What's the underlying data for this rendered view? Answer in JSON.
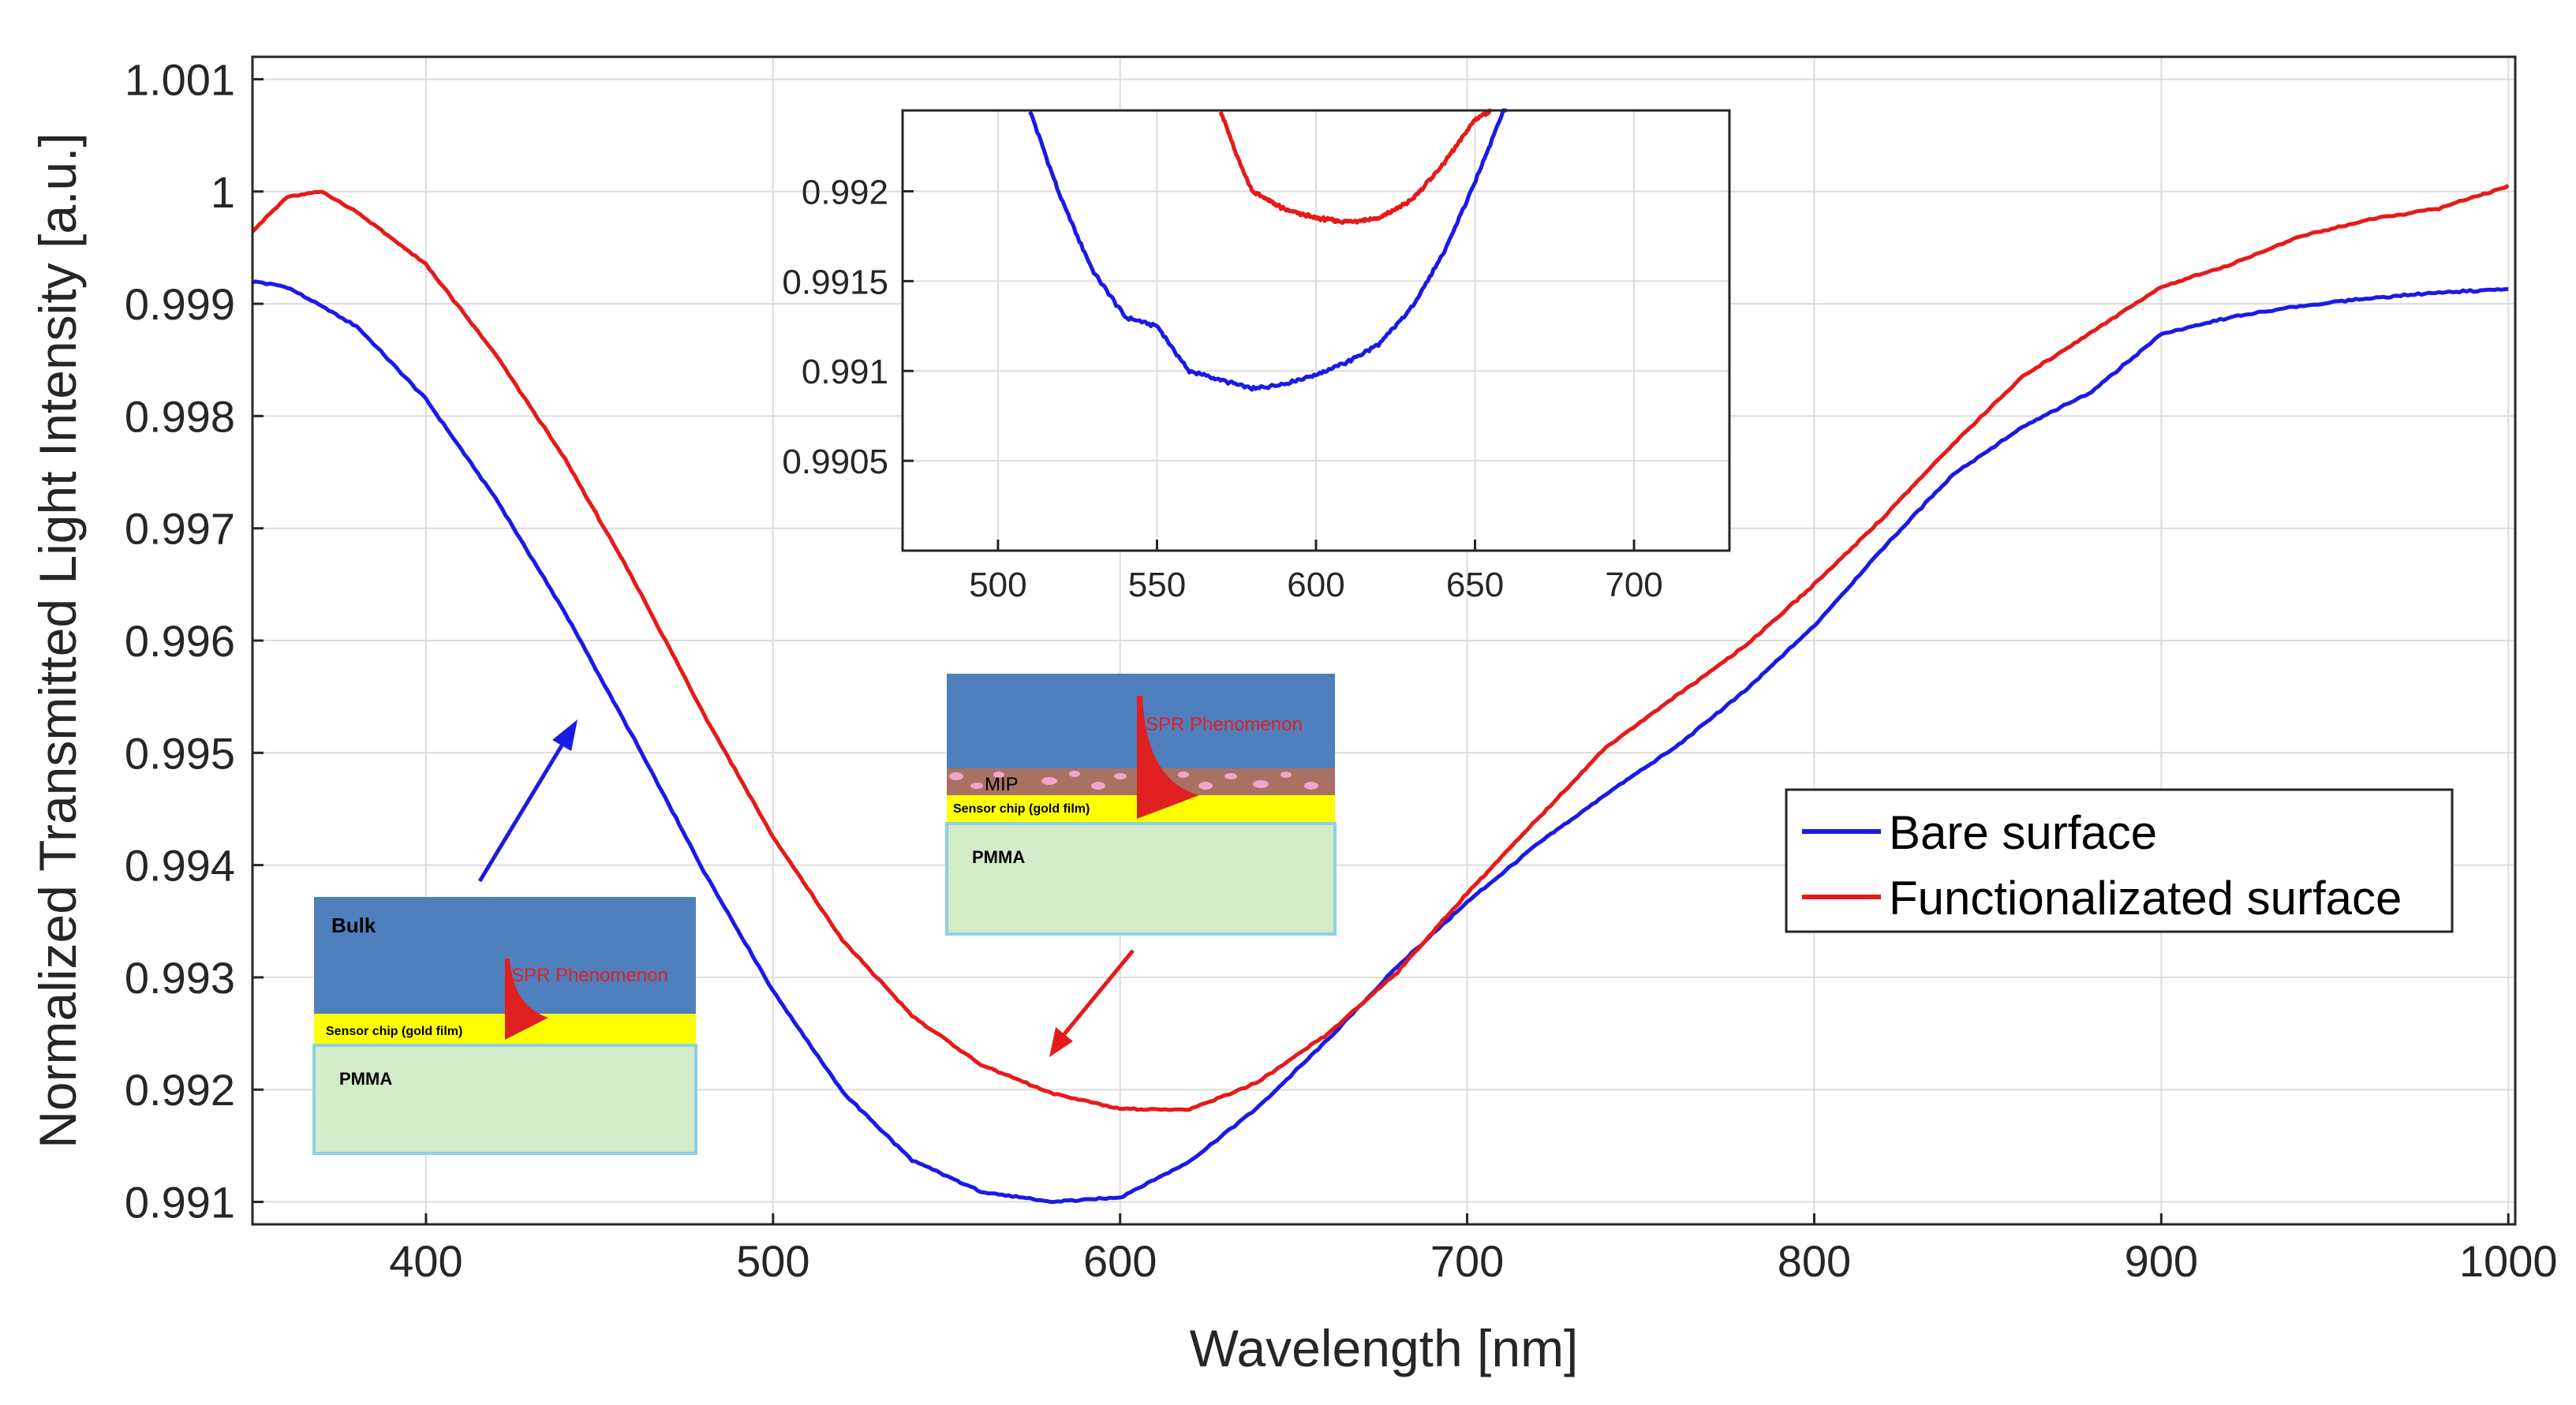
{
  "chart_data": [
    {
      "id": "main",
      "type": "line",
      "title": "",
      "xlabel": "Wavelength [nm]",
      "ylabel": "Normalized Transmitted Light Intensity [a.u.]",
      "xlim": [
        350,
        1002
      ],
      "ylim": [
        0.9908,
        1.0012
      ],
      "xticks": [
        400,
        500,
        600,
        700,
        800,
        900,
        1000
      ],
      "yticks": [
        0.991,
        0.992,
        0.993,
        0.994,
        0.995,
        0.996,
        0.997,
        0.998,
        0.999,
        1,
        1.001
      ],
      "ytick_labels": [
        "0.991",
        "0.992",
        "0.993",
        "0.994",
        "0.995",
        "0.996",
        "0.997",
        "0.998",
        "0.999",
        "1",
        "1.001"
      ],
      "grid": true,
      "legend_position": "center-right",
      "series": [
        {
          "name": "Bare surface",
          "color": "#1a1ae6",
          "x": [
            350,
            360,
            380,
            400,
            420,
            440,
            460,
            480,
            500,
            520,
            540,
            560,
            580,
            600,
            620,
            640,
            660,
            680,
            700,
            720,
            740,
            760,
            780,
            800,
            820,
            840,
            860,
            880,
            900,
            920,
            940,
            960,
            980,
            1000
          ],
          "y": [
            0.9992,
            0.99915,
            0.9988,
            0.99815,
            0.99727,
            0.99625,
            0.99512,
            0.99395,
            0.99288,
            0.99198,
            0.99137,
            0.99109,
            0.991,
            0.99104,
            0.99136,
            0.99185,
            0.99245,
            0.9931,
            0.99367,
            0.99418,
            0.99463,
            0.99505,
            0.99555,
            0.99613,
            0.99683,
            0.99748,
            0.9979,
            0.99822,
            0.99873,
            0.99888,
            0.99898,
            0.99905,
            0.9991,
            0.99913
          ]
        },
        {
          "name": "Functionalizated surface",
          "color": "#e61a1a",
          "x": [
            350,
            360,
            370,
            380,
            400,
            420,
            440,
            460,
            480,
            500,
            520,
            540,
            560,
            580,
            600,
            620,
            640,
            660,
            680,
            700,
            720,
            740,
            760,
            780,
            800,
            820,
            840,
            860,
            880,
            900,
            920,
            940,
            960,
            980,
            1000
          ],
          "y": [
            0.99965,
            0.99995,
            1.0,
            0.99982,
            0.99935,
            0.99855,
            0.99762,
            0.99653,
            0.99535,
            0.99425,
            0.99333,
            0.99266,
            0.99222,
            0.99197,
            0.99183,
            0.99182,
            0.99207,
            0.9925,
            0.99305,
            0.99375,
            0.9944,
            0.99505,
            0.9955,
            0.99595,
            0.9965,
            0.9971,
            0.99775,
            0.99835,
            0.99875,
            0.99915,
            0.99935,
            0.9996,
            0.99975,
            0.99985,
            1.00005
          ]
        }
      ]
    },
    {
      "id": "inset",
      "type": "line",
      "title": "",
      "xlim": [
        470,
        730
      ],
      "ylim": [
        0.99,
        0.99245
      ],
      "xticks": [
        500,
        550,
        600,
        650,
        700
      ],
      "yticks": [
        0.9905,
        0.991,
        0.9915,
        0.992
      ],
      "ytick_labels": [
        "0.9905",
        "0.991",
        "0.9915",
        "0.992"
      ],
      "grid": true,
      "series": [
        {
          "name": "Bare surface",
          "color": "#1a1ae6",
          "x": [
            510,
            520,
            530,
            540,
            550,
            560,
            570,
            580,
            590,
            600,
            610,
            620,
            630,
            640,
            650,
            660
          ],
          "y": [
            0.99245,
            0.99195,
            0.99155,
            0.9913,
            0.99125,
            0.991,
            0.99095,
            0.9909,
            0.99093,
            0.99098,
            0.99105,
            0.99115,
            0.99135,
            0.99165,
            0.99205,
            0.9925
          ]
        },
        {
          "name": "Functionalizated surface",
          "color": "#e61a1a",
          "x": [
            570,
            575,
            580,
            590,
            600,
            610,
            620,
            630,
            640,
            650,
            655
          ],
          "y": [
            0.99245,
            0.9922,
            0.992,
            0.9919,
            0.99185,
            0.99183,
            0.99185,
            0.99195,
            0.99215,
            0.9924,
            0.99245
          ]
        }
      ]
    }
  ],
  "legend": {
    "items": [
      {
        "label": "Bare surface",
        "color": "#1a1ae6"
      },
      {
        "label": "Functionalizated surface",
        "color": "#e61a1a"
      }
    ]
  },
  "diagram_bare": {
    "bulk_label": "Bulk",
    "spr_label": "SPR Phenomenon",
    "chip_label": "Sensor chip (gold film)",
    "pmma_label": "PMMA",
    "colors": {
      "bulk": "#4f7fbd",
      "gold": "#ffff00",
      "pmma": "#d2ecc9",
      "border": "#8dd0e6",
      "spr": "#e02020",
      "arrow": "#1a1ae6"
    }
  },
  "diagram_functionalized": {
    "spr_label": "SPR Phenomenon",
    "mip_label": "MIP",
    "chip_label": "Sensor chip (gold film)",
    "pmma_label": "PMMA",
    "colors": {
      "bulk": "#4f7fbd",
      "mip": "#a87162",
      "mip_spots": "#f2a5c8",
      "gold": "#ffff00",
      "pmma": "#d2ecc9",
      "border": "#8dd0e6",
      "spr": "#e02020",
      "arrow": "#e61a1a"
    }
  }
}
